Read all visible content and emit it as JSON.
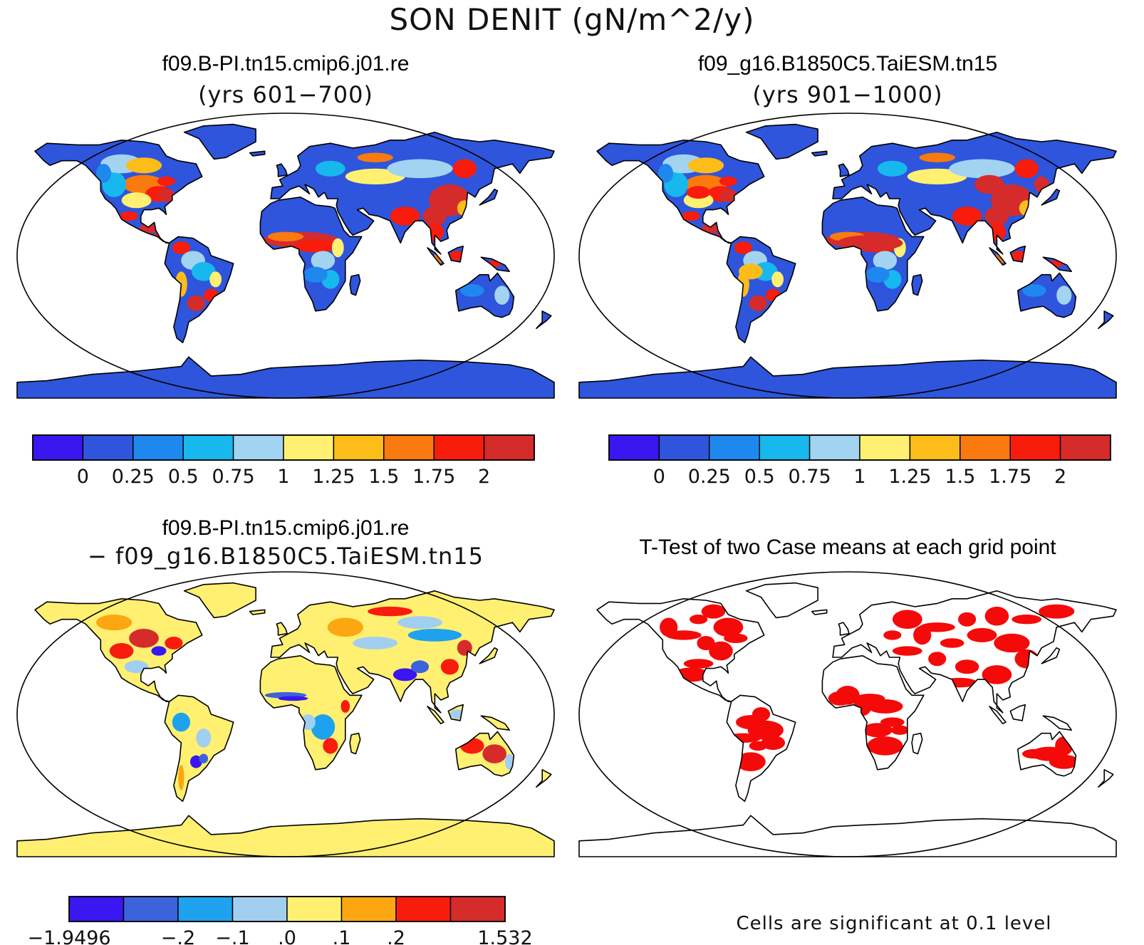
{
  "figure": {
    "title": "SON DENIT (gN/m^2/y)"
  },
  "colors": {
    "palette_abs": [
      "#3a16f0",
      "#2e55dc",
      "#1f88ee",
      "#17b8ee",
      "#a2d3f0",
      "#fff072",
      "#fcbd1a",
      "#f97a0f",
      "#f81c0c",
      "#d62b2b"
    ],
    "palette_diff": [
      "#3a16f0",
      "#3c63dc",
      "#1ea2ee",
      "#a2cff0",
      "#fff072",
      "#fca712",
      "#f81c0c",
      "#d62b2b"
    ],
    "significant": "#f50a0a",
    "land_outline": "#000000"
  },
  "panels": [
    {
      "id": "case1",
      "title": "f09.B-PI.tn15.cmip6.j01.re",
      "subtitle": "(yrs 601−700)",
      "projection": "Robinson",
      "colorbar": {
        "tick_labels": [
          "0",
          "0.25",
          "0.5",
          "0.75",
          "1",
          "1.25",
          "1.5",
          "1.75",
          "2"
        ]
      }
    },
    {
      "id": "case2",
      "title": "f09_g16.B1850C5.TaiESM.tn15",
      "subtitle": "(yrs 901−1000)",
      "projection": "Robinson",
      "colorbar": {
        "tick_labels": [
          "0",
          "0.25",
          "0.5",
          "0.75",
          "1",
          "1.25",
          "1.5",
          "1.75",
          "2"
        ]
      }
    },
    {
      "id": "difference",
      "title": "f09.B-PI.tn15.cmip6.j01.re",
      "subtitle": "− f09_g16.B1850C5.TaiESM.tn15",
      "projection": "Robinson",
      "colorbar": {
        "tick_labels": [
          "−1.9496",
          "−.2",
          "−.1",
          ".0",
          ".1",
          ".2",
          "1.532"
        ]
      }
    },
    {
      "id": "ttest",
      "title": "T-Test of two Case means at each grid point",
      "projection": "Robinson",
      "note": "Cells are significant at 0.1 level"
    }
  ]
}
